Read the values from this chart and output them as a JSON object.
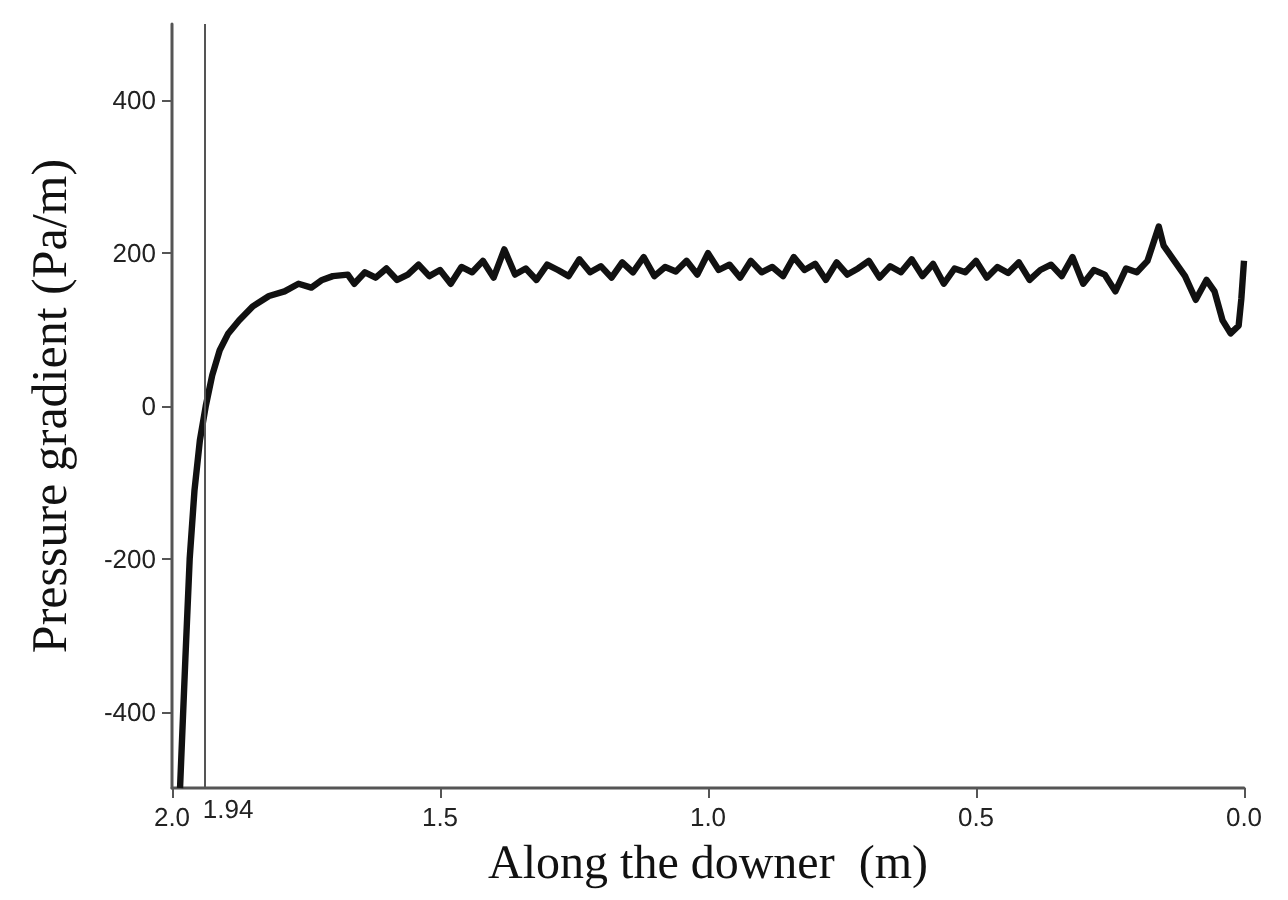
{
  "chart_data": {
    "type": "line",
    "xlabel": "Along the downer  (m)",
    "ylabel": "Pressure gradient (Pa/m)",
    "xlim": [
      2.0,
      0.0
    ],
    "xticks": [
      {
        "value": 2,
        "label": "2.0"
      },
      1.5,
      {
        "value": 1,
        "label": "1.0"
      },
      0.5,
      {
        "value": 0,
        "label": "0.0"
      }
    ],
    "ylim": [
      -500,
      500
    ],
    "yticks": [
      -400,
      -200,
      0,
      200,
      400
    ],
    "marker": "none",
    "line_style": "solid",
    "ref_lines": [
      {
        "axis": "x",
        "value": 1.94,
        "label": "1.94",
        "color": "#555555"
      }
    ],
    "series": [
      {
        "color": "#111111",
        "x": [
          1.985,
          1.975,
          1.967,
          1.958,
          1.948,
          1.937,
          1.925,
          1.911,
          1.895,
          1.875,
          1.85,
          1.819,
          1.79,
          1.764,
          1.74,
          1.72,
          1.7,
          1.672,
          1.66,
          1.64,
          1.62,
          1.6,
          1.58,
          1.56,
          1.54,
          1.52,
          1.5,
          1.48,
          1.46,
          1.44,
          1.42,
          1.4,
          1.38,
          1.36,
          1.34,
          1.32,
          1.3,
          1.28,
          1.26,
          1.24,
          1.22,
          1.2,
          1.18,
          1.16,
          1.14,
          1.12,
          1.1,
          1.08,
          1.06,
          1.04,
          1.02,
          1.0,
          0.98,
          0.96,
          0.94,
          0.92,
          0.9,
          0.88,
          0.86,
          0.84,
          0.82,
          0.8,
          0.78,
          0.76,
          0.74,
          0.72,
          0.7,
          0.68,
          0.66,
          0.64,
          0.62,
          0.6,
          0.58,
          0.56,
          0.54,
          0.52,
          0.5,
          0.48,
          0.46,
          0.44,
          0.42,
          0.4,
          0.38,
          0.36,
          0.34,
          0.32,
          0.3,
          0.28,
          0.26,
          0.24,
          0.22,
          0.2,
          0.18,
          0.159,
          0.15,
          0.13,
          0.11,
          0.09,
          0.07,
          0.055,
          0.04,
          0.025,
          0.01,
          0.005,
          0.0
        ],
        "values": [
          -500,
          -330,
          -200,
          -110,
          -45,
          0,
          40,
          73,
          95,
          112,
          130,
          144,
          150,
          160,
          155,
          165,
          170,
          172,
          160,
          175,
          168,
          180,
          165,
          172,
          185,
          170,
          178,
          160,
          182,
          175,
          190,
          168,
          205,
          172,
          180,
          165,
          185,
          178,
          170,
          192,
          175,
          183,
          168,
          188,
          175,
          195,
          170,
          182,
          176,
          190,
          172,
          200,
          178,
          185,
          168,
          190,
          175,
          182,
          170,
          195,
          178,
          186,
          165,
          188,
          172,
          180,
          190,
          168,
          183,
          175,
          192,
          170,
          186,
          160,
          180,
          175,
          190,
          168,
          182,
          174,
          188,
          165,
          178,
          185,
          170,
          195,
          160,
          178,
          172,
          150,
          180,
          175,
          190,
          235,
          210,
          190,
          170,
          139,
          165,
          150,
          112,
          95,
          105,
          140,
          190
        ]
      }
    ]
  }
}
